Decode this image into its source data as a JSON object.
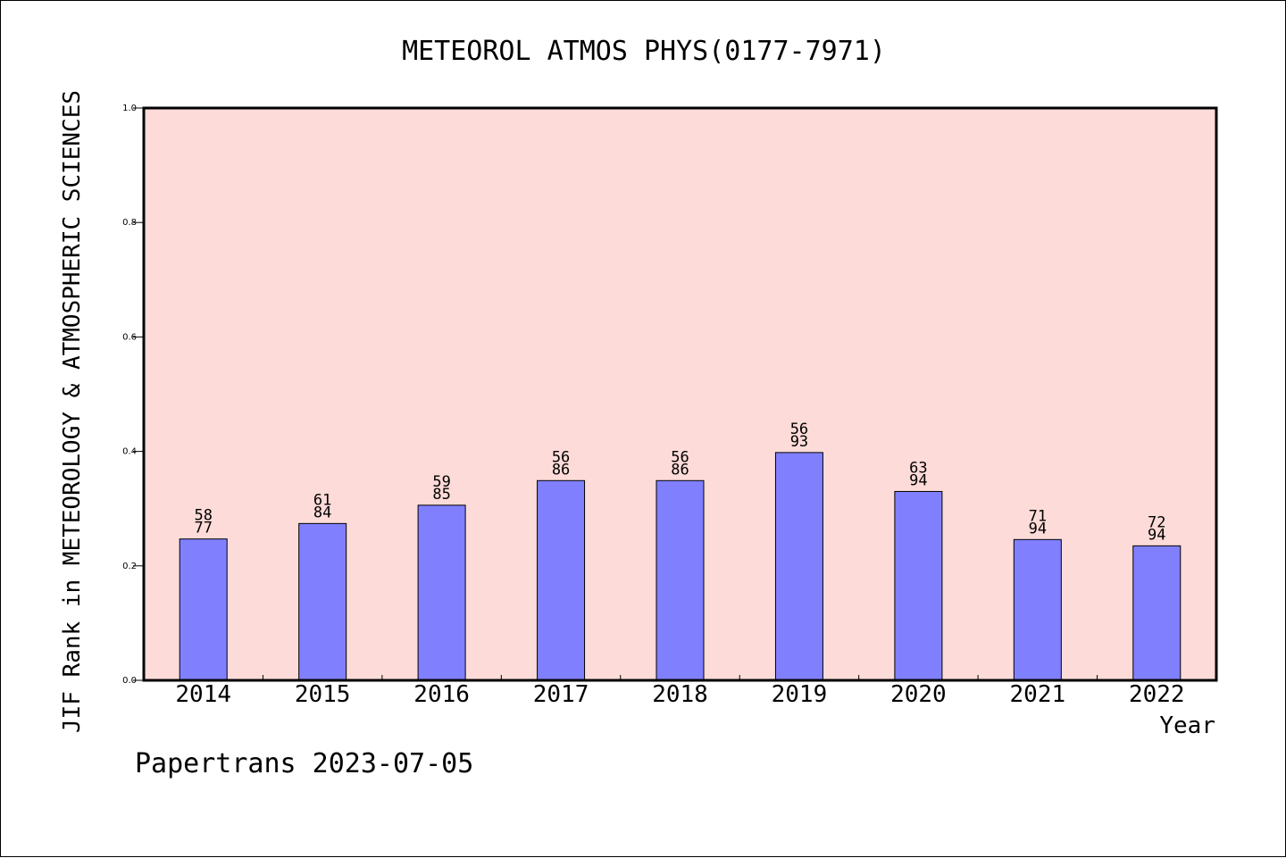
{
  "chart_data": {
    "type": "bar",
    "title": "METEOROL ATMOS PHYS(0177-7971)",
    "xlabel": "Year",
    "ylabel": "JIF Rank in METEOROLOGY & ATMOSPHERIC SCIENCES",
    "categories": [
      "2014",
      "2015",
      "2016",
      "2017",
      "2018",
      "2019",
      "2020",
      "2021",
      "2022"
    ],
    "values": [
      0.247,
      0.274,
      0.306,
      0.349,
      0.349,
      0.398,
      0.33,
      0.246,
      0.235
    ],
    "rank": [
      "58",
      "61",
      "59",
      "56",
      "56",
      "56",
      "63",
      "71",
      "72"
    ],
    "total": [
      "77",
      "84",
      "85",
      "86",
      "86",
      "93",
      "94",
      "94",
      "94"
    ],
    "ylim": [
      0,
      1.0
    ],
    "yticks": [
      0.0,
      0.2,
      0.4,
      0.6,
      0.8,
      1.0
    ],
    "ytick_labels": [
      "0.0",
      "0.2",
      "0.4",
      "0.6",
      "0.8",
      "1.0"
    ],
    "grid": false,
    "colors": {
      "bar": "#8080ff",
      "plot_background": "#fddbd8",
      "axis": "#000000"
    }
  },
  "footer": {
    "credit": "Papertrans 2023-07-05"
  }
}
